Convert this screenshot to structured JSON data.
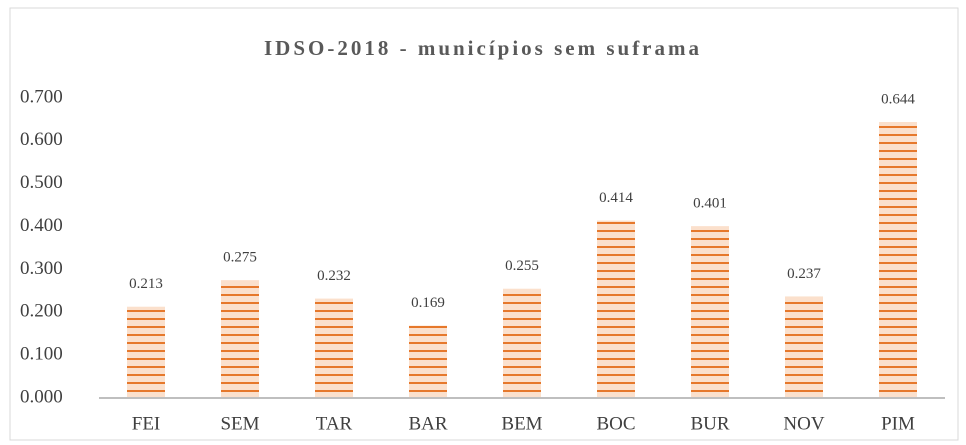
{
  "chart_data": {
    "type": "bar",
    "title": "IDSO-2018 - municípios sem suframa",
    "categories": [
      "FEI",
      "SEM",
      "TAR",
      "BAR",
      "BEM",
      "BOC",
      "BUR",
      "NOV",
      "PIM"
    ],
    "values": [
      0.213,
      0.275,
      0.232,
      0.169,
      0.255,
      0.414,
      0.401,
      0.237,
      0.644
    ],
    "color": "#e6782b",
    "ylim": [
      0,
      0.7
    ],
    "yticks": [
      {
        "value": 0,
        "label": "0.000"
      },
      {
        "value": 0.1,
        "label": "0.100"
      },
      {
        "value": 0.2,
        "label": "0.200"
      },
      {
        "value": 0.3,
        "label": "0.300"
      },
      {
        "value": 0.4,
        "label": "0.400"
      },
      {
        "value": 0.5,
        "label": "0.500"
      },
      {
        "value": 0.6,
        "label": "0.600"
      },
      {
        "value": 0.7,
        "label": "0.700"
      }
    ],
    "grid": false
  }
}
